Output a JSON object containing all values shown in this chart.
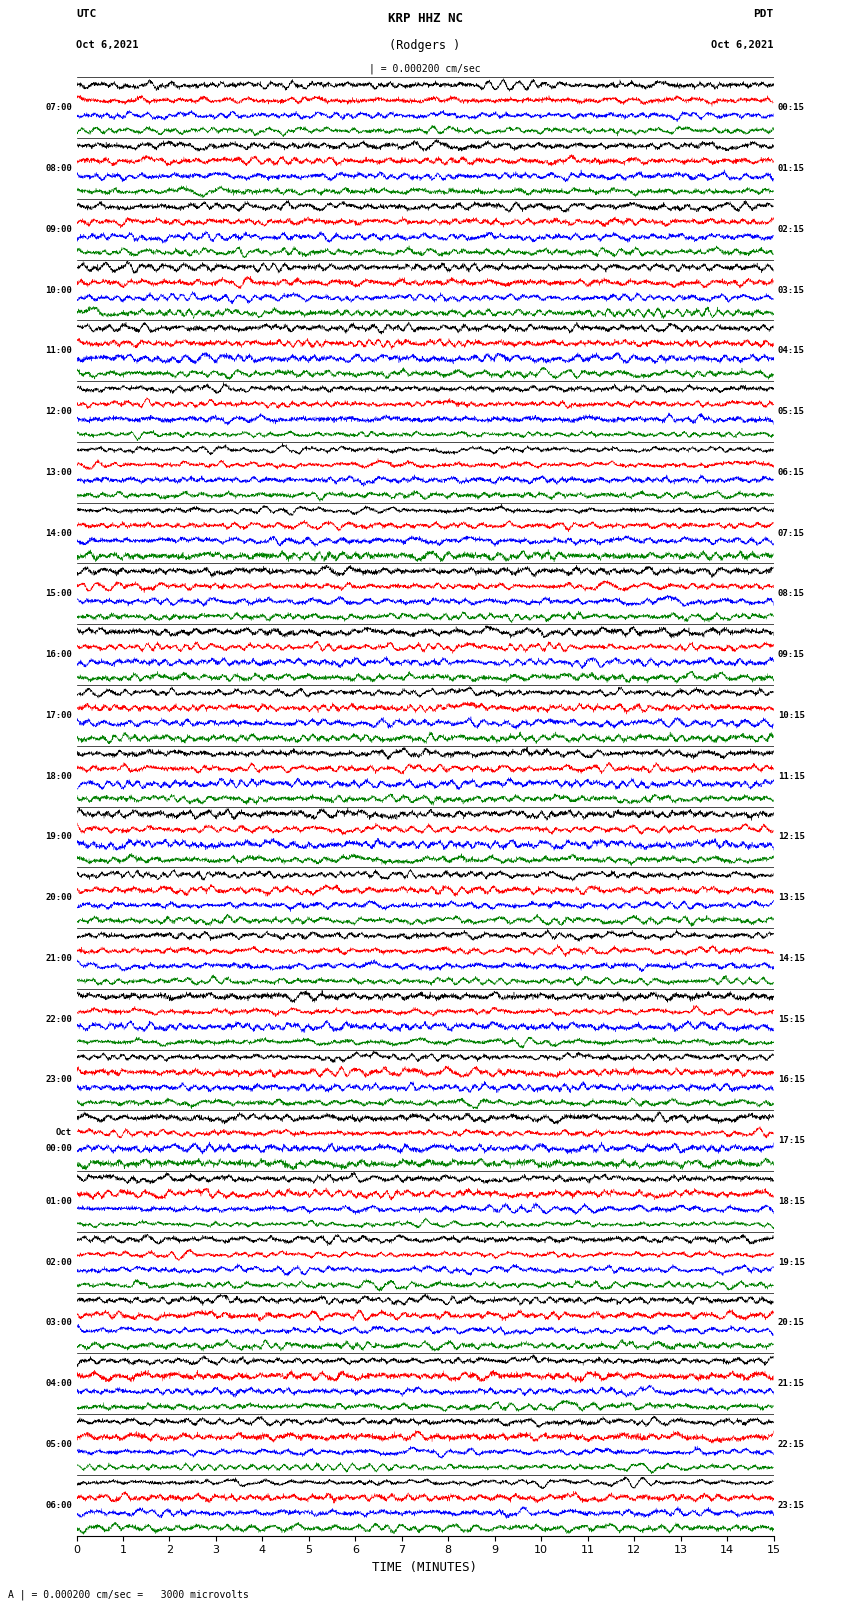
{
  "title_line1": "KRP HHZ NC",
  "title_line2": "(Rodgers )",
  "scale_text": "| = 0.000200 cm/sec",
  "bottom_text": "A | = 0.000200 cm/sec =   3000 microvolts",
  "xlabel": "TIME (MINUTES)",
  "left_times": [
    "07:00",
    "08:00",
    "09:00",
    "10:00",
    "11:00",
    "12:00",
    "13:00",
    "14:00",
    "15:00",
    "16:00",
    "17:00",
    "18:00",
    "19:00",
    "20:00",
    "21:00",
    "22:00",
    "23:00",
    "Oct\n00:00",
    "01:00",
    "02:00",
    "03:00",
    "04:00",
    "05:00",
    "06:00"
  ],
  "right_times": [
    "00:15",
    "01:15",
    "02:15",
    "03:15",
    "04:15",
    "05:15",
    "06:15",
    "07:15",
    "08:15",
    "09:15",
    "10:15",
    "11:15",
    "12:15",
    "13:15",
    "14:15",
    "15:15",
    "16:15",
    "17:15",
    "18:15",
    "19:15",
    "20:15",
    "21:15",
    "22:15",
    "23:15"
  ],
  "n_rows": 24,
  "row_colors": [
    "black",
    "red",
    "blue",
    "green"
  ],
  "bg_color": "white",
  "fig_width": 8.5,
  "fig_height": 16.13,
  "dpi": 100,
  "x_ticks": [
    0,
    1,
    2,
    3,
    4,
    5,
    6,
    7,
    8,
    9,
    10,
    11,
    12,
    13,
    14,
    15
  ],
  "x_lim": [
    0,
    15
  ],
  "line_width": 0.3,
  "n_samples": 4000,
  "sub_row_amplitude": 0.42,
  "n_sub_rows": 4
}
